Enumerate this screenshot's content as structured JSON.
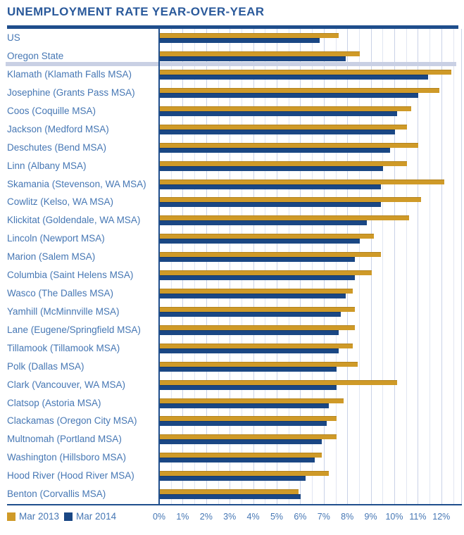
{
  "title": "UNEMPLOYMENT RATE YEAR-OVER-YEAR",
  "legend": {
    "items": [
      {
        "label": "Mar 2013",
        "color": "#CF9A28"
      },
      {
        "label": "Mar 2014",
        "color": "#1A4784"
      }
    ]
  },
  "axis": {
    "tick_labels": [
      "0%",
      "1%",
      "2%",
      "3%",
      "4%",
      "5%",
      "6%",
      "7%",
      "8%",
      "9%",
      "10%",
      "11%",
      "12%"
    ]
  },
  "colors": {
    "gold": "#CF9A28",
    "navy": "#1A4784",
    "rule_navy": "#1F4E8C",
    "title_text": "#2B5A9B",
    "label_text": "#4677B4",
    "tick_text": "#4677B4",
    "separator_band": "#C9D0E4",
    "grid_minor": "#E1E6F2",
    "grid_major": "#C9D2E7"
  },
  "chart_data": {
    "type": "bar",
    "orientation": "horizontal",
    "title": "UNEMPLOYMENT RATE YEAR-OVER-YEAR",
    "xlabel": "",
    "ylabel": "",
    "xlim": [
      0,
      12.85
    ],
    "x_tick_labels": [
      "0%",
      "1%",
      "2%",
      "3%",
      "4%",
      "5%",
      "6%",
      "7%",
      "8%",
      "9%",
      "10%",
      "11%",
      "12%"
    ],
    "gridline_interval_percent": 0.5,
    "grid": true,
    "legend_position": "bottom-left",
    "separator_after_category": "Oregon State",
    "categories": [
      "US",
      "Oregon State",
      "Klamath (Klamath Falls MSA)",
      "Josephine (Grants Pass MSA)",
      "Coos (Coquille MSA)",
      "Jackson (Medford MSA)",
      "Deschutes (Bend MSA)",
      "Linn (Albany MSA)",
      "Skamania (Stevenson, WA MSA)",
      "Cowlitz (Kelso, WA MSA)",
      "Klickitat (Goldendale, WA MSA)",
      "Lincoln (Newport MSA)",
      "Marion (Salem MSA)",
      "Columbia (Saint Helens MSA)",
      "Wasco (The Dalles MSA)",
      "Yamhill (McMinnville MSA)",
      "Lane (Eugene/Springfield MSA)",
      "Tillamook (Tillamook MSA)",
      "Polk (Dallas MSA)",
      "Clark (Vancouver, WA MSA)",
      "Clatsop (Astoria MSA)",
      "Clackamas (Oregon City MSA)",
      "Multnomah (Portland MSA)",
      "Washington (Hillsboro MSA)",
      "Hood River (Hood River MSA)",
      "Benton (Corvallis MSA)"
    ],
    "series": [
      {
        "name": "Mar 2013",
        "color": "#CF9A28",
        "values": [
          7.6,
          8.5,
          12.4,
          11.9,
          10.7,
          10.5,
          11.0,
          10.5,
          12.1,
          11.1,
          10.6,
          9.1,
          9.4,
          9.0,
          8.2,
          8.3,
          8.3,
          8.2,
          8.4,
          10.1,
          7.8,
          7.5,
          7.5,
          6.9,
          7.2,
          5.9
        ]
      },
      {
        "name": "Mar 2014",
        "color": "#1A4784",
        "values": [
          6.8,
          7.9,
          11.4,
          11.0,
          10.1,
          10.0,
          9.8,
          9.5,
          9.4,
          9.4,
          8.8,
          8.5,
          8.3,
          8.3,
          7.9,
          7.7,
          7.6,
          7.6,
          7.5,
          7.5,
          7.2,
          7.1,
          6.9,
          6.6,
          6.2,
          6.0
        ]
      }
    ]
  }
}
